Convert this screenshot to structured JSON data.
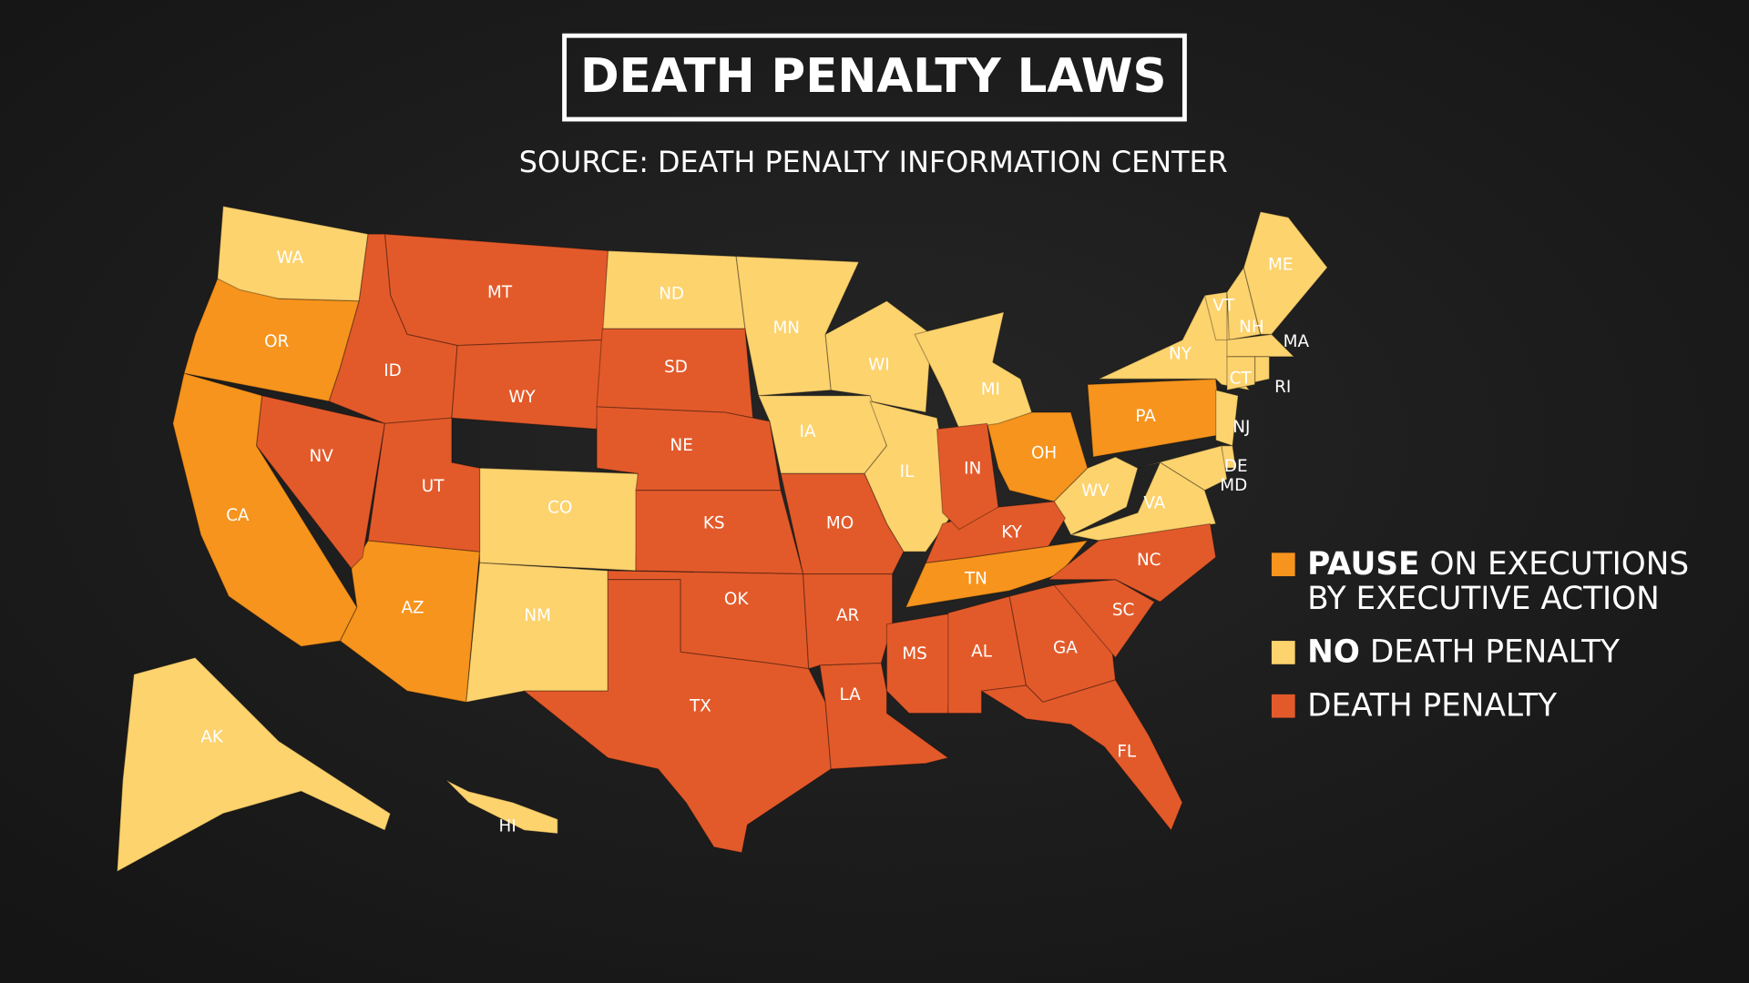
{
  "title": "DEATH PENALTY LAWS",
  "source": "SOURCE: DEATH PENALTY INFORMATION CENTER",
  "legend": [
    {
      "bold": "PAUSE",
      "text": [
        "ON EXECUTIONS",
        "BY EXECUTIVE ACTION"
      ],
      "color": "#f7941d",
      "states": [
        "OR",
        "CA",
        "AZ",
        "OH",
        "PA",
        "TN"
      ]
    },
    {
      "bold": "NO",
      "text": [
        "DEATH PENALTY"
      ],
      "color": "#fdd36e",
      "states": [
        "WA",
        "ND",
        "MN",
        "WI",
        "MI",
        "IA",
        "IL",
        "CO",
        "NM",
        "NY",
        "VT",
        "NH",
        "ME",
        "MA",
        "RI",
        "CT",
        "NJ",
        "DE",
        "MD",
        "VA",
        "WV",
        "AK",
        "HI"
      ]
    },
    {
      "text": [
        "DEATH PENALTY"
      ],
      "color": "#e35a2a",
      "states": [
        "MT",
        "ID",
        "WY",
        "SD",
        "NE",
        "KS",
        "OK",
        "TX",
        "NV",
        "UT",
        "MO",
        "AR",
        "LA",
        "MS",
        "AL",
        "GA",
        "FL",
        "SC",
        "NC",
        "KY",
        "IN"
      ]
    }
  ]
}
